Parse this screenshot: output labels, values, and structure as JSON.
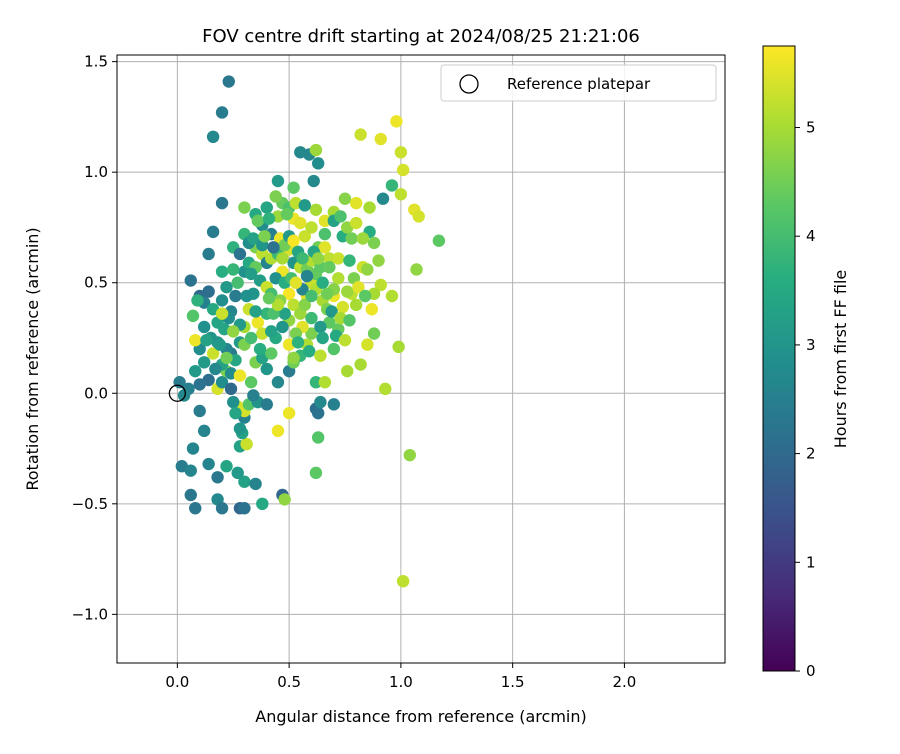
{
  "chart_data": {
    "type": "scatter",
    "title": "FOV centre drift starting at 2024/08/25 21:21:06",
    "xlabel": "Angular distance from reference (arcmin)",
    "ylabel": "Rotation from reference (arcmin)",
    "xlim": [
      -0.27,
      2.45
    ],
    "ylim": [
      -1.22,
      1.53
    ],
    "xticks": [
      0.0,
      0.5,
      1.0,
      1.5,
      2.0
    ],
    "xtick_labels": [
      "0.0",
      "0.5",
      "1.0",
      "1.5",
      "2.0"
    ],
    "yticks": [
      -1.0,
      -0.5,
      0.0,
      0.5,
      1.0,
      1.5
    ],
    "ytick_labels": [
      "−1.0",
      "−0.5",
      "0.0",
      "0.5",
      "1.0",
      "1.5"
    ],
    "grid": true,
    "legend": {
      "position": "top-right",
      "entries": [
        {
          "label": "Reference platepar",
          "marker": "open-circle"
        }
      ]
    },
    "reference_point": {
      "x": 0.0,
      "y": 0.0
    },
    "colorbar": {
      "label": "Hours from first FF file",
      "colormap": "viridis",
      "range": [
        0,
        5.75
      ],
      "ticks": [
        0,
        1,
        2,
        3,
        4,
        5
      ],
      "tick_labels": [
        "0",
        "1",
        "2",
        "3",
        "4",
        "5"
      ]
    },
    "points_note": "each point is [x_arcmin, y_arcmin, hours]",
    "points": [
      [
        0.23,
        1.41,
        2.3
      ],
      [
        0.2,
        1.27,
        2.4
      ],
      [
        0.16,
        1.16,
        2.7
      ],
      [
        0.2,
        0.86,
        2.3
      ],
      [
        0.16,
        0.73,
        2.4
      ],
      [
        0.06,
        0.51,
        2.2
      ],
      [
        0.1,
        0.44,
        2.0
      ],
      [
        0.12,
        0.41,
        2.5
      ],
      [
        0.14,
        0.63,
        2.4
      ],
      [
        0.2,
        0.55,
        3.6
      ],
      [
        0.01,
        0.05,
        2.4
      ],
      [
        0.05,
        0.02,
        2.5
      ],
      [
        0.03,
        -0.01,
        2.7
      ],
      [
        0.02,
        -0.33,
        2.4
      ],
      [
        0.06,
        -0.46,
        2.3
      ],
      [
        0.08,
        -0.52,
        2.3
      ],
      [
        0.06,
        -0.35,
        2.6
      ],
      [
        0.07,
        -0.25,
        2.6
      ],
      [
        0.12,
        -0.17,
        2.6
      ],
      [
        0.1,
        -0.08,
        2.4
      ],
      [
        0.14,
        -0.32,
        2.6
      ],
      [
        0.18,
        -0.38,
        2.3
      ],
      [
        0.18,
        -0.48,
        2.7
      ],
      [
        0.2,
        -0.52,
        2.3
      ],
      [
        0.22,
        -0.33,
        3.4
      ],
      [
        0.28,
        -0.52,
        1.9
      ],
      [
        0.3,
        -0.52,
        2.2
      ],
      [
        0.3,
        -0.4,
        3.3
      ],
      [
        0.27,
        -0.36,
        3.1
      ],
      [
        0.35,
        -0.41,
        2.6
      ],
      [
        0.38,
        -0.5,
        3.5
      ],
      [
        0.47,
        -0.46,
        1.9
      ],
      [
        0.48,
        -0.48,
        4.8
      ],
      [
        0.28,
        -0.24,
        3.3
      ],
      [
        0.31,
        -0.23,
        5.3
      ],
      [
        0.3,
        -0.11,
        2.5
      ],
      [
        0.29,
        -0.18,
        3.3
      ],
      [
        0.27,
        -0.06,
        5.4
      ],
      [
        0.3,
        -0.08,
        5.4
      ],
      [
        0.25,
        -0.04,
        2.9
      ],
      [
        0.32,
        -0.05,
        4.2
      ],
      [
        0.36,
        -0.04,
        3.0
      ],
      [
        0.4,
        -0.05,
        2.4
      ],
      [
        0.45,
        -0.17,
        5.6
      ],
      [
        0.5,
        -0.09,
        5.6
      ],
      [
        0.62,
        -0.07,
        2.1
      ],
      [
        0.63,
        -0.09,
        2.2
      ],
      [
        0.64,
        -0.04,
        2.7
      ],
      [
        0.7,
        -0.05,
        2.5
      ],
      [
        0.63,
        -0.2,
        4.2
      ],
      [
        0.62,
        -0.36,
        4.3
      ],
      [
        0.18,
        0.02,
        5.4
      ],
      [
        0.2,
        0.05,
        2.8
      ],
      [
        0.22,
        0.1,
        4.6
      ],
      [
        0.24,
        0.18,
        2.3
      ],
      [
        0.28,
        0.23,
        3.1
      ],
      [
        0.3,
        0.3,
        5.0
      ],
      [
        0.33,
        0.05,
        4.3
      ],
      [
        0.35,
        0.14,
        4.6
      ],
      [
        0.38,
        0.16,
        3.3
      ],
      [
        0.4,
        0.11,
        3.0
      ],
      [
        0.42,
        0.18,
        4.3
      ],
      [
        0.45,
        0.05,
        2.7
      ],
      [
        0.5,
        0.1,
        2.4
      ],
      [
        0.52,
        0.14,
        4.5
      ],
      [
        0.55,
        0.17,
        3.8
      ],
      [
        0.58,
        0.22,
        5.1
      ],
      [
        0.6,
        0.27,
        4.6
      ],
      [
        0.62,
        0.05,
        3.8
      ],
      [
        0.66,
        0.05,
        5.1
      ],
      [
        0.7,
        0.2,
        4.2
      ],
      [
        0.72,
        0.29,
        4.4
      ],
      [
        0.76,
        0.1,
        5.0
      ],
      [
        0.82,
        0.13,
        5.0
      ],
      [
        0.85,
        0.22,
        5.4
      ],
      [
        0.88,
        0.27,
        4.5
      ],
      [
        0.93,
        0.02,
        5.1
      ],
      [
        0.96,
        0.44,
        5.1
      ],
      [
        0.99,
        0.21,
        5.0
      ],
      [
        1.04,
        -0.28,
        4.8
      ],
      [
        1.01,
        -0.85,
        5.2
      ],
      [
        1.0,
        0.9,
        5.2
      ],
      [
        1.01,
        1.01,
        5.4
      ],
      [
        1.0,
        1.09,
        5.3
      ],
      [
        0.98,
        1.23,
        5.6
      ],
      [
        0.91,
        1.15,
        5.5
      ],
      [
        0.82,
        1.17,
        5.3
      ],
      [
        0.96,
        0.94,
        3.8
      ],
      [
        0.92,
        0.88,
        2.7
      ],
      [
        1.06,
        0.83,
        5.5
      ],
      [
        1.08,
        0.8,
        5.4
      ],
      [
        1.17,
        0.69,
        4.3
      ],
      [
        1.07,
        0.56,
        4.8
      ],
      [
        0.91,
        0.49,
        5.2
      ],
      [
        0.9,
        0.6,
        4.8
      ],
      [
        0.55,
        1.09,
        2.7
      ],
      [
        0.59,
        1.08,
        2.7
      ],
      [
        0.62,
        1.1,
        4.9
      ],
      [
        0.63,
        1.04,
        2.8
      ],
      [
        0.61,
        0.96,
        2.7
      ],
      [
        0.45,
        0.96,
        3.1
      ],
      [
        0.52,
        0.93,
        4.3
      ],
      [
        0.62,
        0.83,
        5.0
      ],
      [
        0.7,
        0.82,
        5.0
      ],
      [
        0.75,
        0.88,
        4.7
      ],
      [
        0.8,
        0.86,
        5.5
      ],
      [
        0.86,
        0.84,
        5.0
      ],
      [
        0.86,
        0.73,
        3.6
      ],
      [
        0.88,
        0.68,
        4.6
      ],
      [
        0.83,
        0.57,
        5.3
      ],
      [
        0.78,
        0.45,
        5.2
      ],
      [
        0.8,
        0.4,
        5.0
      ],
      [
        0.87,
        0.38,
        5.6
      ],
      [
        0.88,
        0.45,
        5.0
      ],
      [
        0.85,
        0.56,
        4.8
      ],
      [
        0.3,
        0.84,
        4.6
      ],
      [
        0.35,
        0.81,
        3.5
      ],
      [
        0.38,
        0.76,
        2.8
      ],
      [
        0.4,
        0.84,
        3.4
      ],
      [
        0.42,
        0.72,
        2.5
      ],
      [
        0.45,
        0.8,
        4.9
      ],
      [
        0.47,
        0.86,
        4.4
      ],
      [
        0.5,
        0.84,
        4.1
      ],
      [
        0.52,
        0.79,
        5.6
      ],
      [
        0.55,
        0.77,
        5.5
      ],
      [
        0.57,
        0.71,
        5.3
      ],
      [
        0.6,
        0.75,
        5.2
      ],
      [
        0.63,
        0.66,
        4.5
      ],
      [
        0.66,
        0.72,
        4.1
      ],
      [
        0.68,
        0.61,
        5.2
      ],
      [
        0.35,
        0.66,
        4.6
      ],
      [
        0.38,
        0.63,
        5.2
      ],
      [
        0.4,
        0.59,
        2.6
      ],
      [
        0.42,
        0.61,
        5.1
      ],
      [
        0.45,
        0.63,
        3.9
      ],
      [
        0.47,
        0.55,
        5.6
      ],
      [
        0.5,
        0.65,
        5.4
      ],
      [
        0.52,
        0.59,
        3.0
      ],
      [
        0.55,
        0.57,
        5.2
      ],
      [
        0.58,
        0.56,
        4.5
      ],
      [
        0.25,
        0.66,
        3.7
      ],
      [
        0.28,
        0.63,
        2.2
      ],
      [
        0.3,
        0.55,
        2.9
      ],
      [
        0.32,
        0.59,
        3.5
      ],
      [
        0.35,
        0.57,
        4.4
      ],
      [
        0.37,
        0.51,
        3.2
      ],
      [
        0.4,
        0.48,
        5.3
      ],
      [
        0.42,
        0.45,
        4.0
      ],
      [
        0.44,
        0.52,
        2.9
      ],
      [
        0.48,
        0.5,
        3.6
      ],
      [
        0.5,
        0.45,
        5.7
      ],
      [
        0.52,
        0.4,
        5.2
      ],
      [
        0.55,
        0.36,
        4.9
      ],
      [
        0.58,
        0.44,
        5.5
      ],
      [
        0.6,
        0.5,
        5.3
      ],
      [
        0.62,
        0.54,
        4.4
      ],
      [
        0.65,
        0.42,
        5.0
      ],
      [
        0.67,
        0.38,
        4.6
      ],
      [
        0.7,
        0.44,
        5.6
      ],
      [
        0.72,
        0.52,
        5.1
      ],
      [
        0.74,
        0.39,
        5.4
      ],
      [
        0.76,
        0.46,
        4.9
      ],
      [
        0.68,
        0.32,
        4.3
      ],
      [
        0.64,
        0.3,
        3.1
      ],
      [
        0.6,
        0.34,
        3.9
      ],
      [
        0.56,
        0.3,
        5.5
      ],
      [
        0.53,
        0.27,
        4.6
      ],
      [
        0.5,
        0.33,
        4.8
      ],
      [
        0.47,
        0.3,
        3.0
      ],
      [
        0.44,
        0.25,
        3.5
      ],
      [
        0.14,
        0.46,
        2.1
      ],
      [
        0.16,
        0.38,
        3.5
      ],
      [
        0.12,
        0.3,
        2.9
      ],
      [
        0.15,
        0.25,
        3.0
      ],
      [
        0.18,
        0.32,
        3.4
      ],
      [
        0.2,
        0.42,
        2.8
      ],
      [
        0.22,
        0.48,
        3.1
      ],
      [
        0.24,
        0.37,
        2.6
      ],
      [
        0.26,
        0.44,
        2.4
      ],
      [
        0.28,
        0.31,
        3.1
      ],
      [
        0.1,
        0.2,
        2.8
      ],
      [
        0.12,
        0.14,
        3.1
      ],
      [
        0.14,
        0.06,
        2.1
      ],
      [
        0.16,
        0.18,
        5.3
      ],
      [
        0.18,
        0.23,
        3.0
      ],
      [
        0.2,
        0.13,
        3.3
      ],
      [
        0.22,
        0.2,
        2.6
      ],
      [
        0.24,
        0.09,
        2.8
      ],
      [
        0.26,
        0.15,
        3.4
      ],
      [
        0.28,
        0.08,
        5.6
      ],
      [
        0.08,
        0.24,
        5.6
      ],
      [
        0.08,
        0.1,
        3.1
      ],
      [
        0.1,
        0.04,
        2.2
      ],
      [
        0.07,
        0.35,
        4.2
      ],
      [
        0.09,
        0.42,
        3.7
      ],
      [
        0.32,
        0.38,
        5.3
      ],
      [
        0.34,
        0.45,
        3.0
      ],
      [
        0.36,
        0.32,
        5.6
      ],
      [
        0.38,
        0.27,
        5.3
      ],
      [
        0.4,
        0.36,
        3.8
      ],
      [
        0.46,
        0.42,
        4.7
      ],
      [
        0.48,
        0.36,
        3.3
      ],
      [
        0.5,
        0.22,
        5.6
      ],
      [
        0.52,
        0.16,
        4.8
      ],
      [
        0.54,
        0.23,
        3.7
      ],
      [
        0.56,
        0.47,
        2.6
      ],
      [
        0.58,
        0.53,
        2.6
      ],
      [
        0.6,
        0.6,
        5.1
      ],
      [
        0.62,
        0.47,
        5.1
      ],
      [
        0.64,
        0.57,
        4.3
      ],
      [
        0.66,
        0.66,
        5.5
      ],
      [
        0.68,
        0.57,
        4.4
      ],
      [
        0.7,
        0.47,
        4.7
      ],
      [
        0.72,
        0.61,
        5.3
      ],
      [
        0.74,
        0.71,
        3.6
      ],
      [
        0.76,
        0.75,
        4.8
      ],
      [
        0.78,
        0.7,
        4.5
      ],
      [
        0.66,
        0.78,
        5.5
      ],
      [
        0.7,
        0.78,
        3.3
      ],
      [
        0.73,
        0.8,
        4.1
      ],
      [
        0.46,
        0.7,
        5.6
      ],
      [
        0.48,
        0.67,
        4.5
      ],
      [
        0.5,
        0.71,
        3.1
      ],
      [
        0.52,
        0.69,
        5.7
      ],
      [
        0.54,
        0.64,
        3.4
      ],
      [
        0.3,
        0.72,
        3.8
      ],
      [
        0.32,
        0.68,
        2.8
      ],
      [
        0.34,
        0.7,
        3.3
      ],
      [
        0.36,
        0.78,
        4.4
      ],
      [
        0.38,
        0.67,
        3.0
      ],
      [
        0.25,
        0.56,
        3.8
      ],
      [
        0.27,
        0.5,
        4.0
      ],
      [
        0.33,
        0.54,
        3.2
      ],
      [
        0.31,
        0.44,
        2.9
      ],
      [
        0.35,
        0.37,
        3.3
      ],
      [
        0.21,
        0.29,
        3.4
      ],
      [
        0.23,
        0.34,
        2.8
      ],
      [
        0.19,
        0.22,
        3.1
      ],
      [
        0.17,
        0.11,
        2.7
      ],
      [
        0.13,
        0.24,
        3.3
      ],
      [
        0.42,
        0.28,
        3.3
      ],
      [
        0.43,
        0.36,
        4.1
      ],
      [
        0.45,
        0.4,
        5.1
      ],
      [
        0.57,
        0.4,
        4.7
      ],
      [
        0.59,
        0.19,
        3.6
      ],
      [
        0.64,
        0.17,
        5.2
      ],
      [
        0.65,
        0.25,
        3.4
      ],
      [
        0.69,
        0.37,
        3.1
      ],
      [
        0.71,
        0.26,
        3.5
      ],
      [
        0.75,
        0.24,
        5.2
      ],
      [
        0.3,
        0.22,
        4.6
      ],
      [
        0.33,
        0.25,
        4.0
      ],
      [
        0.37,
        0.2,
        3.6
      ],
      [
        0.25,
        0.28,
        4.8
      ],
      [
        0.2,
        0.36,
        5.3
      ],
      [
        0.22,
        0.16,
        4.5
      ],
      [
        0.24,
        0.02,
        2.0
      ],
      [
        0.26,
        -0.09,
        3.4
      ],
      [
        0.28,
        -0.16,
        3.0
      ],
      [
        0.34,
        -0.01,
        2.5
      ],
      [
        0.44,
        0.89,
        4.6
      ],
      [
        0.49,
        0.81,
        4.4
      ],
      [
        0.53,
        0.86,
        5.2
      ],
      [
        0.57,
        0.85,
        3.1
      ],
      [
        0.41,
        0.79,
        3.7
      ],
      [
        0.39,
        0.71,
        4.6
      ],
      [
        0.43,
        0.66,
        2.2
      ],
      [
        0.47,
        0.61,
        5.0
      ],
      [
        0.51,
        0.52,
        4.0
      ],
      [
        0.53,
        0.5,
        5.5
      ],
      [
        0.56,
        0.61,
        3.9
      ],
      [
        0.61,
        0.64,
        3.4
      ],
      [
        0.63,
        0.61,
        4.8
      ],
      [
        0.65,
        0.5,
        3.6
      ],
      [
        0.67,
        0.45,
        4.5
      ],
      [
        0.73,
        0.34,
        5.0
      ],
      [
        0.77,
        0.33,
        4.2
      ],
      [
        0.79,
        0.52,
        4.6
      ],
      [
        0.81,
        0.48,
        5.5
      ],
      [
        0.84,
        0.44,
        4.3
      ],
      [
        0.83,
        0.7,
        4.9
      ],
      [
        0.8,
        0.77,
        5.3
      ],
      [
        0.77,
        0.6,
        3.8
      ],
      [
        0.6,
        0.44,
        4.0
      ],
      [
        0.41,
        0.43,
        4.4
      ]
    ]
  }
}
